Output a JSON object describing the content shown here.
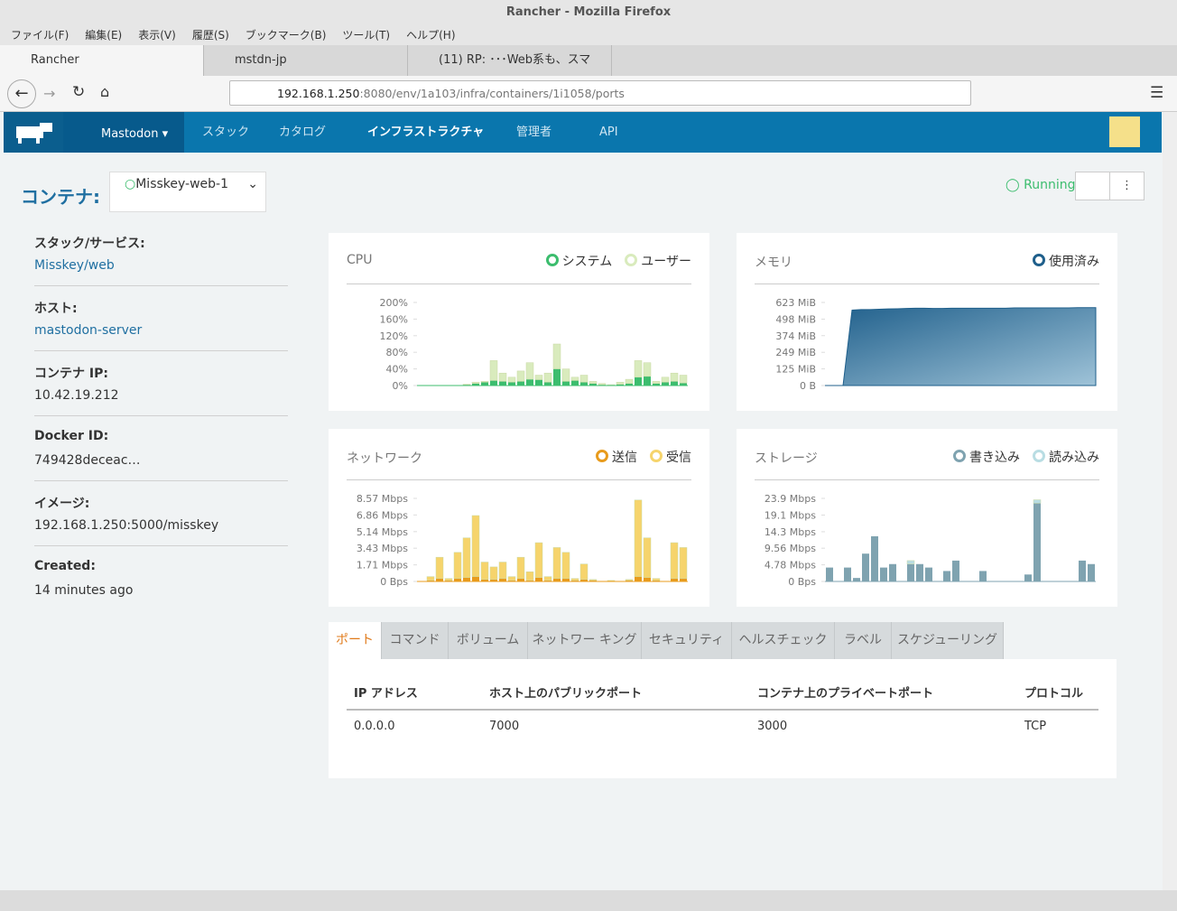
{
  "window": {
    "title": "Rancher - Mozilla Firefox"
  },
  "menu": [
    "ファイル(F)",
    "編集(E)",
    "表示(V)",
    "履歴(S)",
    "ブックマーク(B)",
    "ツール(T)",
    "ヘルプ(H)"
  ],
  "tabs": [
    "Rancher",
    "mstdn-jp",
    "(11) RP: ･･･Web系も、スマ"
  ],
  "url": {
    "host": "192.168.1.250",
    "rest": ":8080/env/1a103/infra/containers/1i1058/ports"
  },
  "nav": {
    "env": "Mastodon",
    "items": [
      "スタック",
      "カタログ",
      "インフラストラクチャ",
      "管理者",
      "API"
    ]
  },
  "container": {
    "label": "コンテナ:",
    "name": "Misskey-web-1",
    "state": "Running"
  },
  "info": [
    {
      "label": "スタック/サービス:",
      "value": "Misskey/web"
    },
    {
      "label": "ホスト:",
      "value": "mastodon-server"
    },
    {
      "label": "コンテナ IP:",
      "value": "10.42.19.212"
    },
    {
      "label": "Docker ID:",
      "value": "749428deceac…"
    },
    {
      "label": "イメージ:",
      "value": "192.168.1.250:5000/misskey"
    },
    {
      "label": "Created:",
      "value": "14 minutes ago"
    }
  ],
  "chart_data": [
    {
      "type": "bar",
      "title": "CPU",
      "categories": [
        null,
        null,
        null,
        null,
        null,
        null,
        null,
        null,
        null,
        null,
        null,
        null,
        null,
        null,
        null,
        null,
        null,
        null,
        null,
        null,
        null,
        null,
        null,
        null,
        null,
        null,
        null,
        null,
        null,
        null
      ],
      "series": [
        {
          "name": "システム",
          "color": "#3cbd6e",
          "values": [
            0,
            0,
            0,
            0,
            0,
            2,
            5,
            8,
            12,
            10,
            8,
            10,
            15,
            14,
            8,
            40,
            10,
            12,
            8,
            5,
            2,
            0,
            3,
            5,
            20,
            22,
            5,
            8,
            10,
            6
          ]
        },
        {
          "name": "ユーザー",
          "color": "#d9ebbd",
          "values": [
            0,
            0,
            0,
            0,
            0,
            1,
            3,
            2,
            48,
            20,
            12,
            25,
            40,
            11,
            22,
            60,
            30,
            8,
            17,
            5,
            3,
            2,
            5,
            10,
            40,
            33,
            5,
            12,
            20,
            19
          ]
        }
      ],
      "ylim": [
        0,
        200
      ],
      "yticks": [
        {
          "value": 0,
          "label": "0%"
        },
        {
          "value": 40,
          "label": "40%"
        },
        {
          "value": 80,
          "label": "80%"
        },
        {
          "value": 120,
          "label": "120%"
        },
        {
          "value": 160,
          "label": "160%"
        },
        {
          "value": 200,
          "label": "200%"
        }
      ]
    },
    {
      "type": "area",
      "title": "メモリ",
      "categories": [
        null,
        null,
        null,
        null,
        null,
        null,
        null,
        null,
        null,
        null,
        null,
        null,
        null,
        null,
        null,
        null,
        null,
        null,
        null,
        null,
        null,
        null,
        null,
        null,
        null,
        null,
        null,
        null,
        null,
        null
      ],
      "series": [
        {
          "name": "使用済み",
          "color": "#1f5f8b",
          "values": [
            0,
            0,
            0,
            566,
            570,
            570,
            572,
            575,
            576,
            578,
            580,
            580,
            578,
            578,
            580,
            580,
            580,
            580,
            580,
            580,
            580,
            582,
            582,
            582,
            582,
            582,
            582,
            582,
            584,
            584
          ]
        }
      ],
      "ylim": [
        0,
        623
      ],
      "yticks": [
        {
          "value": 0,
          "label": "0 B"
        },
        {
          "value": 125,
          "label": "125 MiB"
        },
        {
          "value": 249,
          "label": "249 MiB"
        },
        {
          "value": 374,
          "label": "374 MiB"
        },
        {
          "value": 498,
          "label": "498 MiB"
        },
        {
          "value": 623,
          "label": "623 MiB"
        }
      ]
    },
    {
      "type": "bar",
      "title": "ネットワーク",
      "categories": [
        null,
        null,
        null,
        null,
        null,
        null,
        null,
        null,
        null,
        null,
        null,
        null,
        null,
        null,
        null,
        null,
        null,
        null,
        null,
        null,
        null,
        null,
        null,
        null,
        null,
        null,
        null,
        null,
        null,
        null
      ],
      "series": [
        {
          "name": "送信",
          "color": "#e89b1c",
          "values": [
            0,
            0.1,
            0.3,
            0.1,
            0.3,
            0.4,
            0.5,
            0.2,
            0.2,
            0.3,
            0.1,
            0.3,
            0.1,
            0.4,
            0.1,
            0.3,
            0.3,
            0.1,
            0.2,
            0.1,
            0,
            0,
            0,
            0.1,
            0.5,
            0.4,
            0.1,
            0,
            0.3,
            0.3
          ]
        },
        {
          "name": "受信",
          "color": "#f6d46c",
          "values": [
            0,
            0.4,
            2.2,
            0.2,
            2.7,
            4.1,
            6.3,
            1.8,
            1.3,
            1.7,
            0.4,
            2.2,
            0.9,
            3.6,
            0.4,
            3.2,
            2.7,
            0.2,
            1.6,
            0.1,
            0,
            0.1,
            0,
            0.1,
            7.9,
            4.1,
            0.2,
            0,
            3.7,
            3.2
          ]
        }
      ],
      "ylim": [
        0,
        8.57
      ],
      "yticks": [
        {
          "value": 0,
          "label": "0 Bps"
        },
        {
          "value": 1.71,
          "label": "1.71 Mbps"
        },
        {
          "value": 3.43,
          "label": "3.43 Mbps"
        },
        {
          "value": 5.14,
          "label": "5.14 Mbps"
        },
        {
          "value": 6.86,
          "label": "6.86 Mbps"
        },
        {
          "value": 8.57,
          "label": "8.57 Mbps"
        }
      ]
    },
    {
      "type": "bar",
      "title": "ストレージ",
      "categories": [
        null,
        null,
        null,
        null,
        null,
        null,
        null,
        null,
        null,
        null,
        null,
        null,
        null,
        null,
        null,
        null,
        null,
        null,
        null,
        null,
        null,
        null,
        null,
        null,
        null,
        null,
        null,
        null,
        null,
        null
      ],
      "series": [
        {
          "name": "書き込み",
          "color": "#7fa3b0",
          "values": [
            4,
            0,
            4,
            1,
            8,
            13,
            4,
            5,
            0,
            5,
            5,
            4,
            0,
            3,
            6,
            0,
            0,
            3,
            0,
            0,
            0,
            0,
            2,
            22.5,
            0,
            0,
            0,
            0,
            6,
            5
          ]
        },
        {
          "name": "読み込み",
          "color": "#b9dde3",
          "values": [
            0,
            0,
            0,
            0,
            0,
            0,
            0,
            0,
            0,
            1,
            0,
            0,
            0,
            0,
            0,
            0,
            0,
            0,
            0,
            0,
            0,
            0,
            0,
            1,
            0,
            0,
            0,
            0,
            0,
            0
          ]
        }
      ],
      "ylim": [
        0,
        23.9
      ],
      "yticks": [
        {
          "value": 0,
          "label": "0 Bps"
        },
        {
          "value": 4.78,
          "label": "4.78 Mbps"
        },
        {
          "value": 9.56,
          "label": "9.56 Mbps"
        },
        {
          "value": 14.3,
          "label": "14.3 Mbps"
        },
        {
          "value": 19.1,
          "label": "19.1 Mbps"
        },
        {
          "value": 23.9,
          "label": "23.9 Mbps"
        }
      ]
    }
  ],
  "page_tabs": [
    "ポート",
    "コマンド",
    "ボリューム",
    "ネットワー キング",
    "セキュリティ",
    "ヘルスチェック",
    "ラベル",
    "スケジューリング"
  ],
  "table": {
    "headers": [
      "IP アドレス",
      "ホスト上のパブリックポート",
      "コンテナ上のプライベートポート",
      "プロトコル"
    ],
    "rows": [
      [
        "0.0.0.0",
        "7000",
        "3000",
        "TCP"
      ]
    ]
  }
}
